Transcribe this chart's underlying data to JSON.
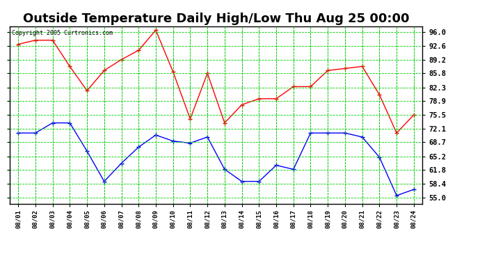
{
  "title": "Outside Temperature Daily High/Low Thu Aug 25 00:00",
  "copyright": "Copyright 2005 Curtronics.com",
  "x_labels": [
    "08/01",
    "08/02",
    "08/03",
    "08/04",
    "08/05",
    "08/06",
    "08/07",
    "08/08",
    "08/09",
    "08/10",
    "08/11",
    "08/12",
    "08/13",
    "08/14",
    "08/15",
    "08/16",
    "08/17",
    "08/18",
    "08/19",
    "08/20",
    "08/21",
    "08/22",
    "08/23",
    "08/24"
  ],
  "high_values": [
    93.0,
    94.0,
    94.0,
    87.5,
    81.5,
    86.5,
    89.2,
    91.5,
    96.5,
    86.2,
    74.5,
    85.8,
    73.5,
    78.0,
    79.5,
    79.5,
    82.5,
    82.5,
    86.5,
    87.0,
    87.5,
    80.5,
    71.0,
    75.5
  ],
  "low_values": [
    71.0,
    71.0,
    73.5,
    73.5,
    66.5,
    59.0,
    63.5,
    67.5,
    70.5,
    69.0,
    68.5,
    70.0,
    62.0,
    59.0,
    59.0,
    63.0,
    62.0,
    71.0,
    71.0,
    71.0,
    70.0,
    65.0,
    55.5,
    57.0
  ],
  "high_color": "#ff0000",
  "low_color": "#0000ff",
  "bg_color": "#ffffff",
  "plot_bg_color": "#ffffff",
  "grid_color": "#00cc00",
  "title_fontsize": 13,
  "y_ticks": [
    55.0,
    58.4,
    61.8,
    65.2,
    68.7,
    72.1,
    75.5,
    78.9,
    82.3,
    85.8,
    89.2,
    92.6,
    96.0
  ],
  "ylim": [
    53.5,
    97.5
  ],
  "marker": "+"
}
